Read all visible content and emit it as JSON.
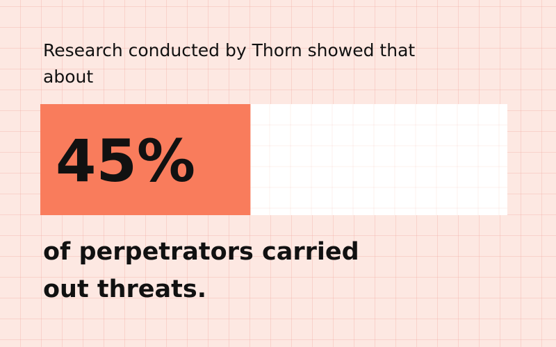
{
  "chart_data": {
    "type": "progress",
    "intro": "Research conducted by Thorn showed that about",
    "values": [
      45
    ],
    "value_labels": [
      "45%"
    ],
    "xlim": [
      0,
      100
    ],
    "color": "#f97c5c",
    "track_color": "#ffffff",
    "caption": "of perpetrators carried out threats."
  }
}
